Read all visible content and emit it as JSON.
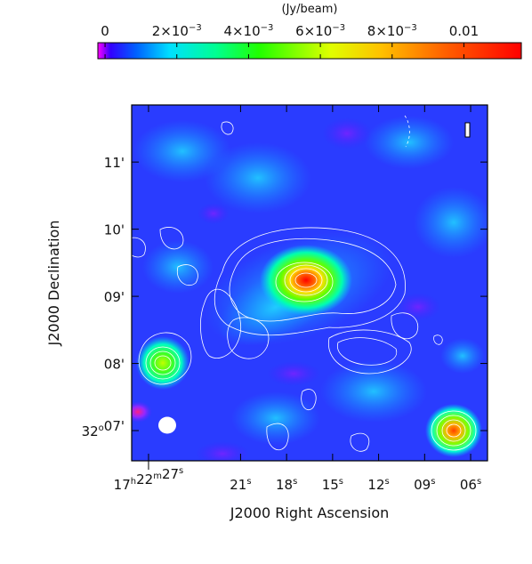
{
  "chart_data": {
    "type": "heatmap",
    "colorbar": {
      "unit_label": "(Jy/beam)",
      "range": [
        -0.0002,
        0.0116
      ],
      "tick_values": [
        0,
        0.002,
        0.004,
        0.006,
        0.008,
        0.01
      ],
      "tick_labels": [
        {
          "base": "0",
          "exp": ""
        },
        {
          "base": "2×10",
          "exp": "−3"
        },
        {
          "base": "4×10",
          "exp": "−3"
        },
        {
          "base": "6×10",
          "exp": "−3"
        },
        {
          "base": "8×10",
          "exp": "−3"
        },
        {
          "base": "0.01",
          "exp": ""
        }
      ],
      "colormap": [
        "#ff00ff",
        "#0000ff",
        "#00ffff",
        "#00ff00",
        "#ffff00",
        "#ff8000",
        "#ff0000"
      ]
    },
    "xlabel": "J2000 Right Ascension",
    "ylabel": "J2000 Declination",
    "x_ticks": [
      {
        "value": 27,
        "label": "17h22m27s"
      },
      {
        "value": 21,
        "label": "21s"
      },
      {
        "value": 18,
        "label": "18s"
      },
      {
        "value": 15,
        "label": "15s"
      },
      {
        "value": 12,
        "label": "12s"
      },
      {
        "value": 9,
        "label": "09s"
      },
      {
        "value": 6,
        "label": "06s"
      }
    ],
    "x_tick_display": [
      {
        "main": "17",
        "sup": "h",
        "main2": "22",
        "sup2": "m",
        "main3": "27",
        "sup3": "s"
      },
      {
        "main": "21",
        "sup": "s"
      },
      {
        "main": "18",
        "sup": "s"
      },
      {
        "main": "15",
        "sup": "s"
      },
      {
        "main": "12",
        "sup": "s"
      },
      {
        "main": "09",
        "sup": "s"
      },
      {
        "main": "06",
        "sup": "s"
      }
    ],
    "y_ticks": [
      {
        "value": 7,
        "label": "32°07'"
      },
      {
        "value": 8,
        "label": "08'"
      },
      {
        "value": 9,
        "label": "09'"
      },
      {
        "value": 10,
        "label": "10'"
      },
      {
        "value": 11,
        "label": "11'"
      }
    ],
    "y_tick_display": [
      {
        "main": "32",
        "sup": "o",
        "main2": "07'"
      },
      {
        "main": "08'"
      },
      {
        "main": "09'"
      },
      {
        "main": "10'"
      },
      {
        "main": "11'"
      }
    ],
    "x_range": [
      28.1,
      4.9
    ],
    "y_range": [
      6.55,
      11.85
    ],
    "sources": [
      {
        "ra": 17.0,
        "dec": 9.22,
        "peak": 0.0116,
        "note": "central source"
      },
      {
        "ra": 26.8,
        "dec": 7.95,
        "peak": 0.005
      },
      {
        "ra": 6.9,
        "dec": 7.0,
        "peak": 0.0095
      },
      {
        "ra": 28.0,
        "dec": 7.25,
        "peak": 0.002
      }
    ],
    "contours": "white",
    "beam": "filled white ellipse, lower-left"
  }
}
